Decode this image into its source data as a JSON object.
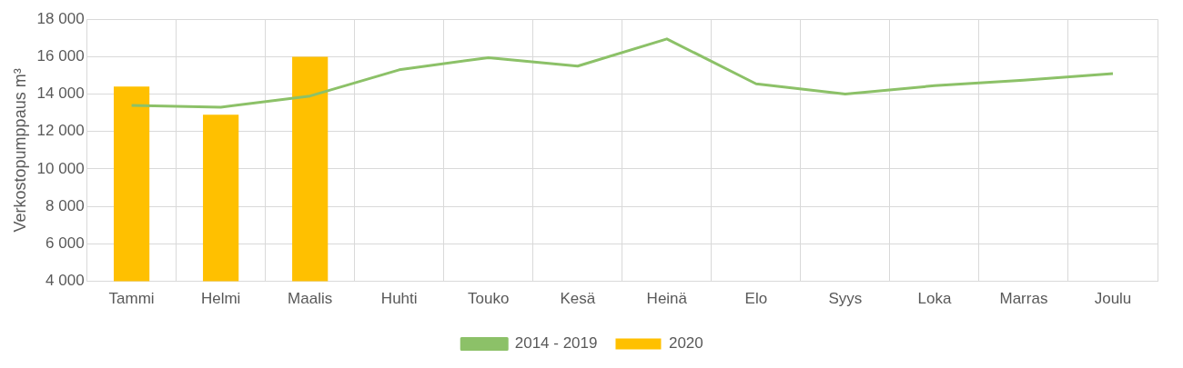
{
  "chart_data": {
    "type": "bar",
    "ylabel": "Verkostopumppaus m³",
    "categories": [
      "Tammi",
      "Helmi",
      "Maalis",
      "Huhti",
      "Touko",
      "Kesä",
      "Heinä",
      "Elo",
      "Syys",
      "Loka",
      "Marras",
      "Joulu"
    ],
    "series": [
      {
        "name": "2020",
        "color": "#ffc000",
        "values": [
          14400,
          12900,
          16000,
          null,
          null,
          null,
          null,
          null,
          null,
          null,
          null,
          null
        ]
      },
      {
        "name": "2014 - 2019",
        "type": "line",
        "color": "#8cc168",
        "values": [
          13400,
          13300,
          13900,
          15300,
          15950,
          15500,
          16950,
          14550,
          14000,
          14450,
          14750,
          15100
        ]
      }
    ],
    "ylim": [
      4000,
      18000
    ],
    "yticks": [
      {
        "value": 4000,
        "label": "4 000"
      },
      {
        "value": 6000,
        "label": "6 000"
      },
      {
        "value": 8000,
        "label": "8 000"
      },
      {
        "value": 10000,
        "label": "10 000"
      },
      {
        "value": 12000,
        "label": "12 000"
      },
      {
        "value": 14000,
        "label": "14 000"
      },
      {
        "value": 16000,
        "label": "16 000"
      },
      {
        "value": 18000,
        "label": "18 000"
      }
    ],
    "grid": true,
    "legend": "bottom",
    "marker": "none"
  }
}
